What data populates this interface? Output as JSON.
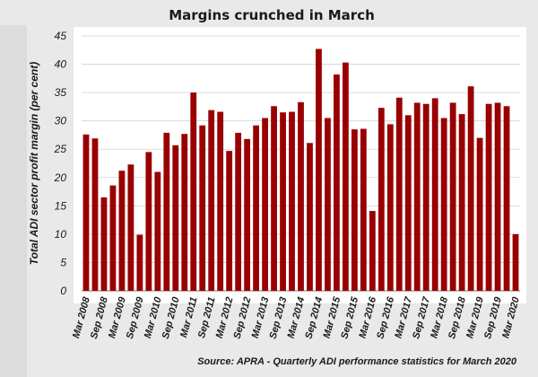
{
  "chart_data": {
    "type": "bar",
    "title": "Margins crunched  in March",
    "ylabel": "Total ADI sector profit margin (per cent)",
    "xlabel": "",
    "ylim": [
      0,
      45
    ],
    "yticks": [
      0,
      5,
      10,
      15,
      20,
      25,
      30,
      35,
      40,
      45
    ],
    "grid": true,
    "bar_color": "#990000",
    "tick_labels": [
      "Mar 2008",
      "Sep 2008",
      "Mar 2009",
      "Sep 2009",
      "Mar 2010",
      "Sep 2010",
      "Mar 2011",
      "Sep 2011",
      "Mar 2012",
      "Sep 2012",
      "Mar 2013",
      "Sep 2013",
      "Mar 2014",
      "Sep 2014",
      "Mar 2015",
      "Sep 2015",
      "Mar 2016",
      "Sep 2016",
      "Mar 2017",
      "Sep 2017",
      "Mar 2018",
      "Sep 2018",
      "Mar 2019",
      "Sep 2019",
      "Mar 2020"
    ],
    "values": [
      27.6,
      26.9,
      16.5,
      18.6,
      21.2,
      22.3,
      9.9,
      24.5,
      21.0,
      27.9,
      25.7,
      27.7,
      35.0,
      29.2,
      31.9,
      31.6,
      24.7,
      27.9,
      26.8,
      29.2,
      30.5,
      32.6,
      31.5,
      31.6,
      33.3,
      26.1,
      42.7,
      30.5,
      38.2,
      40.3,
      28.5,
      28.6,
      14.1,
      32.3,
      29.4,
      34.1,
      31.0,
      33.2,
      33.0,
      34.0,
      30.5,
      33.2,
      31.2,
      36.1,
      27.0,
      33.0,
      33.2,
      32.6,
      10.0
    ],
    "source": "Source: APRA - Quarterly ADI performance statistics for March 2020"
  }
}
